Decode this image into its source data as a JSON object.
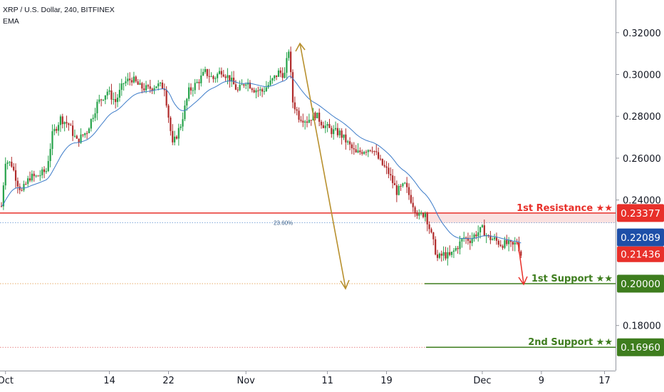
{
  "header": {
    "symbol_line": "XRP / U.S. Dollar, 240, BITFINEX",
    "indicator": "EMA"
  },
  "colors": {
    "up_candle": "#26a24a",
    "down_candle": "#b02b2b",
    "ema": "#3d7cc9",
    "resistance": "#e8302a",
    "support": "#3e7d1e",
    "fib": "#5b8fcf",
    "projection_arrow": "#b8902e",
    "down_arrow": "#e8302a",
    "current_price_badge": "#e8302a",
    "ema_badge": "#1e4fa8"
  },
  "chart_data": {
    "type": "candlestick",
    "x_axis": {
      "tick_labels": [
        "Oct",
        "14",
        "22",
        "Nov",
        "11",
        "19",
        "Dec",
        "9",
        "17"
      ]
    },
    "y_axis": {
      "tick_labels": [
        "0.32000",
        "0.30000",
        "0.28000",
        "0.26000",
        "0.24000",
        "0.18000"
      ],
      "range": [
        0.152,
        0.33
      ]
    },
    "close_path": [
      [
        0,
        0.237
      ],
      [
        2,
        0.259
      ],
      [
        5,
        0.257
      ],
      [
        8,
        0.248
      ],
      [
        10,
        0.244
      ],
      [
        14,
        0.251
      ],
      [
        17,
        0.251
      ],
      [
        22,
        0.254
      ],
      [
        25,
        0.271
      ],
      [
        29,
        0.279
      ],
      [
        33,
        0.276
      ],
      [
        37,
        0.268
      ],
      [
        42,
        0.273
      ],
      [
        47,
        0.286
      ],
      [
        52,
        0.292
      ],
      [
        56,
        0.287
      ],
      [
        60,
        0.296
      ],
      [
        64,
        0.298
      ],
      [
        68,
        0.294
      ],
      [
        72,
        0.293
      ],
      [
        76,
        0.295
      ],
      [
        80,
        0.294
      ],
      [
        84,
        0.266
      ],
      [
        88,
        0.276
      ],
      [
        92,
        0.292
      ],
      [
        96,
        0.296
      ],
      [
        100,
        0.301
      ],
      [
        104,
        0.298
      ],
      [
        108,
        0.302
      ],
      [
        112,
        0.298
      ],
      [
        116,
        0.292
      ],
      [
        120,
        0.297
      ],
      [
        124,
        0.293
      ],
      [
        128,
        0.292
      ],
      [
        132,
        0.296
      ],
      [
        136,
        0.301
      ],
      [
        139,
        0.3
      ],
      [
        141,
        0.312
      ],
      [
        143,
        0.287
      ],
      [
        146,
        0.28
      ],
      [
        150,
        0.278
      ],
      [
        154,
        0.281
      ],
      [
        158,
        0.276
      ],
      [
        162,
        0.273
      ],
      [
        166,
        0.272
      ],
      [
        170,
        0.267
      ],
      [
        174,
        0.262
      ],
      [
        178,
        0.264
      ],
      [
        182,
        0.265
      ],
      [
        186,
        0.258
      ],
      [
        190,
        0.253
      ],
      [
        194,
        0.244
      ],
      [
        198,
        0.247
      ],
      [
        202,
        0.238
      ],
      [
        205,
        0.232
      ],
      [
        208,
        0.234
      ],
      [
        211,
        0.223
      ],
      [
        214,
        0.212
      ],
      [
        217,
        0.214
      ],
      [
        220,
        0.213
      ],
      [
        224,
        0.218
      ],
      [
        227,
        0.222
      ],
      [
        230,
        0.221
      ],
      [
        233,
        0.224
      ],
      [
        236,
        0.226
      ],
      [
        239,
        0.222
      ],
      [
        242,
        0.221
      ],
      [
        245,
        0.219
      ],
      [
        248,
        0.219
      ],
      [
        251,
        0.218
      ],
      [
        253,
        0.22
      ],
      [
        255,
        0.214
      ]
    ],
    "annotations": {
      "resistance": {
        "label": "1st Resistance ★★",
        "value": 0.23377,
        "badge": "0.23377"
      },
      "support_1": {
        "label": "1st Support ★★",
        "value": 0.2,
        "badge": "0.20000"
      },
      "support_2": {
        "label": "2nd Support ★★",
        "value": 0.1696,
        "badge": "0.16960"
      },
      "fibonacci": {
        "label": "23.60%",
        "value": 0.2291
      },
      "ema_value": {
        "value": 0.22089,
        "badge": "0.22089"
      },
      "last_price": {
        "value": 0.21436,
        "badge": "0.21436"
      }
    }
  }
}
